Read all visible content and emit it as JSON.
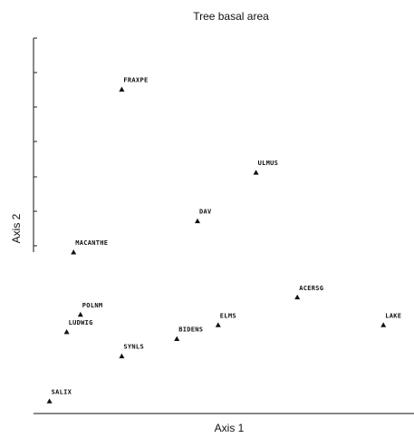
{
  "chart_data": {
    "type": "scatter",
    "title": "Tree basal area",
    "xlabel": "Axis 1",
    "ylabel": "Axis 2",
    "xlim": [
      0,
      100
    ],
    "ylim": [
      0,
      100
    ],
    "grid": false,
    "legend": "none",
    "marker": "triangle",
    "points": [
      {
        "label": "FRAXPE",
        "x": 23,
        "y": 92
      },
      {
        "label": "ULMUS",
        "x": 62,
        "y": 68
      },
      {
        "label": "DAV",
        "x": 45,
        "y": 54
      },
      {
        "label": "MACANTHE",
        "x": 9,
        "y": 45
      },
      {
        "label": "ACERSG",
        "x": 74,
        "y": 32
      },
      {
        "label": "ELMS",
        "x": 51,
        "y": 24
      },
      {
        "label": "LAKE",
        "x": 99,
        "y": 24
      },
      {
        "label": "BIDENS",
        "x": 39,
        "y": 20
      },
      {
        "label": "POLNM",
        "x": 11,
        "y": 27
      },
      {
        "label": "LUDWIG",
        "x": 7,
        "y": 22
      },
      {
        "label": "SYNLS",
        "x": 23,
        "y": 15
      },
      {
        "label": "SALIX",
        "x": 2,
        "y": 2
      }
    ]
  }
}
